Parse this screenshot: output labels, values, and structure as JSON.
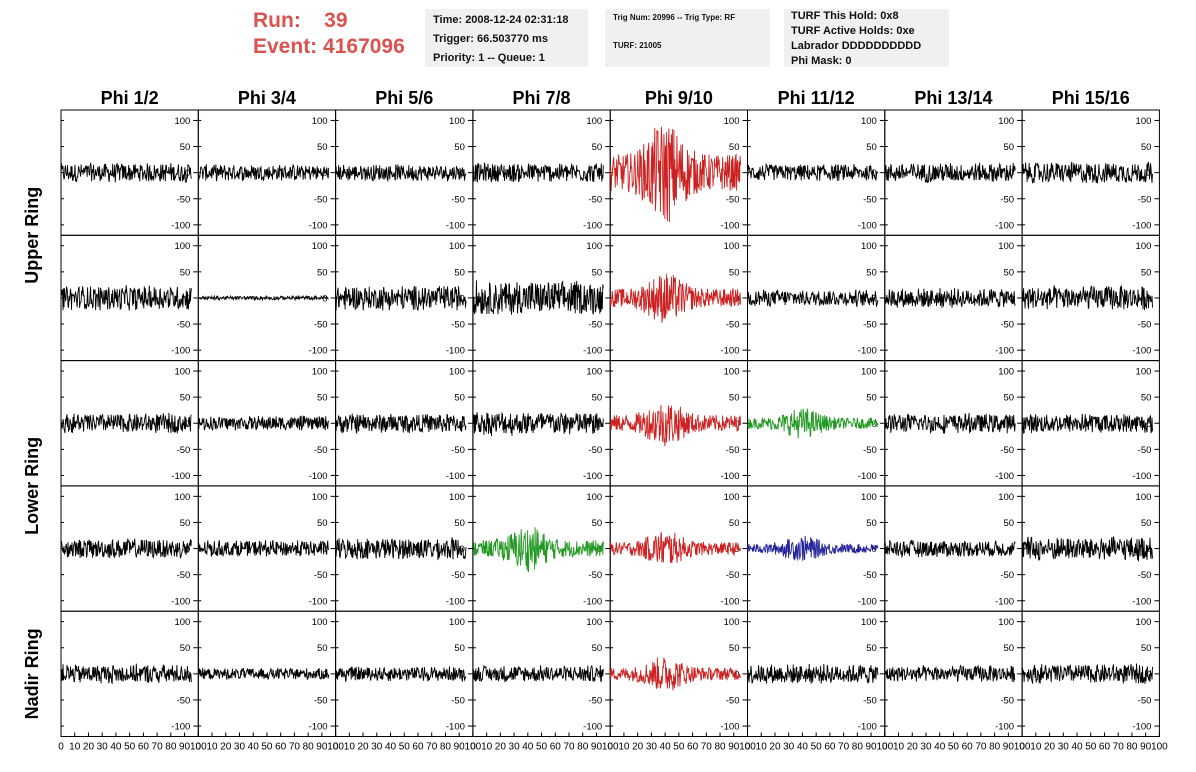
{
  "run_label": "Run:",
  "run_value": "39",
  "event_label": "Event:",
  "event_value": "4167096",
  "info_box_1": [
    "Time: 2008-12-24 02:31:18",
    "Trigger: 66.503770 ms",
    "Priority: 1 -- Queue: 1"
  ],
  "info_box_2": [
    "Trig Num: 20996 -- Trig Type: RF",
    "TURF: 21005"
  ],
  "info_box_3": [
    "TURF This Hold: 0x8",
    "TURF Active Holds: 0xe",
    "Labrador DDDDDDDDDD",
    "Phi Mask: 0"
  ],
  "colors": {
    "normal": "#000000",
    "red": "#cc2222",
    "green": "#229922",
    "blue": "#22229a",
    "run_text": "#d9534f"
  },
  "chart_data": {
    "type": "line",
    "title": "",
    "column_headers": [
      "Phi 1/2",
      "Phi 3/4",
      "Phi 5/6",
      "Phi 7/8",
      "Phi 9/10",
      "Phi 11/12",
      "Phi 13/14",
      "Phi 15/16"
    ],
    "row_labels": [
      {
        "label": "Upper Ring",
        "rows": [
          0,
          1
        ]
      },
      {
        "label": "Lower Ring",
        "rows": [
          2,
          3
        ]
      },
      {
        "label": "Nadir Ring",
        "rows": [
          4
        ]
      }
    ],
    "xlim": [
      0,
      100
    ],
    "ylim": [
      -120,
      120
    ],
    "y_ticks": [
      100,
      50,
      0,
      -50,
      -100
    ],
    "y_tick_labels": [
      "100",
      "50",
      "0",
      "-50",
      "-100"
    ],
    "x_tick_labels": [
      "0",
      "10",
      "20",
      "30",
      "40",
      "50",
      "60",
      "70",
      "80",
      "90",
      "100"
    ],
    "trace_x_range": [
      0,
      95
    ],
    "panel_traces": [
      [
        {
          "color": "normal",
          "amplitude": 20
        },
        {
          "color": "normal",
          "amplitude": 17
        },
        {
          "color": "normal",
          "amplitude": 17
        },
        {
          "color": "normal",
          "amplitude": 20
        },
        {
          "color": "red",
          "amplitude": 100,
          "pulse_center": 40
        },
        {
          "color": "normal",
          "amplitude": 17
        },
        {
          "color": "normal",
          "amplitude": 20
        },
        {
          "color": "normal",
          "amplitude": 22
        }
      ],
      [
        {
          "color": "normal",
          "amplitude": 25
        },
        {
          "color": "normal",
          "amplitude": 4
        },
        {
          "color": "normal",
          "amplitude": 25
        },
        {
          "color": "normal",
          "amplitude": 35
        },
        {
          "color": "red",
          "amplitude": 50,
          "pulse_center": 40
        },
        {
          "color": "normal",
          "amplitude": 17
        },
        {
          "color": "normal",
          "amplitude": 20
        },
        {
          "color": "normal",
          "amplitude": 25
        }
      ],
      [
        {
          "color": "normal",
          "amplitude": 20
        },
        {
          "color": "normal",
          "amplitude": 15
        },
        {
          "color": "normal",
          "amplitude": 20
        },
        {
          "color": "normal",
          "amplitude": 25
        },
        {
          "color": "red",
          "amplitude": 45,
          "pulse_center": 40
        },
        {
          "color": "green",
          "amplitude": 30,
          "pulse_center": 40
        },
        {
          "color": "normal",
          "amplitude": 20
        },
        {
          "color": "normal",
          "amplitude": 20
        }
      ],
      [
        {
          "color": "normal",
          "amplitude": 20
        },
        {
          "color": "normal",
          "amplitude": 17
        },
        {
          "color": "normal",
          "amplitude": 22
        },
        {
          "color": "green",
          "amplitude": 45,
          "pulse_center": 40
        },
        {
          "color": "red",
          "amplitude": 35,
          "pulse_center": 40
        },
        {
          "color": "blue",
          "amplitude": 25,
          "pulse_center": 40
        },
        {
          "color": "normal",
          "amplitude": 17
        },
        {
          "color": "normal",
          "amplitude": 25
        }
      ],
      [
        {
          "color": "normal",
          "amplitude": 20
        },
        {
          "color": "normal",
          "amplitude": 12
        },
        {
          "color": "normal",
          "amplitude": 15
        },
        {
          "color": "normal",
          "amplitude": 17
        },
        {
          "color": "red",
          "amplitude": 35,
          "pulse_center": 40
        },
        {
          "color": "normal",
          "amplitude": 20
        },
        {
          "color": "normal",
          "amplitude": 17
        },
        {
          "color": "normal",
          "amplitude": 20
        }
      ]
    ]
  }
}
